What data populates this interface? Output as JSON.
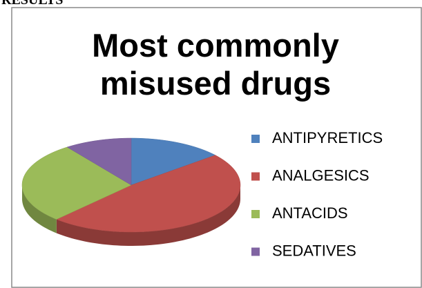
{
  "heading": "RESULTS",
  "chart_data": {
    "type": "pie",
    "title": "Most commonly misused drugs",
    "categories": [
      "ANTIPYRETICS",
      "ANALGESICS",
      "ANTACIDS",
      "SEDATIVES"
    ],
    "values": [
      14,
      48,
      28,
      10
    ],
    "colors": [
      "#4f81bd",
      "#c0504d",
      "#9bbb59",
      "#8064a2"
    ],
    "legend": "right",
    "three_d": true
  }
}
